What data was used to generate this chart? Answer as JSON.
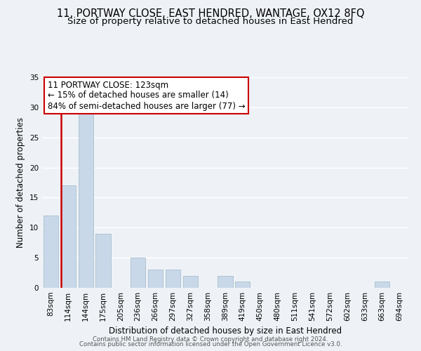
{
  "title": "11, PORTWAY CLOSE, EAST HENDRED, WANTAGE, OX12 8FQ",
  "subtitle": "Size of property relative to detached houses in East Hendred",
  "xlabel": "Distribution of detached houses by size in East Hendred",
  "ylabel": "Number of detached properties",
  "bar_labels": [
    "83sqm",
    "114sqm",
    "144sqm",
    "175sqm",
    "205sqm",
    "236sqm",
    "266sqm",
    "297sqm",
    "327sqm",
    "358sqm",
    "389sqm",
    "419sqm",
    "450sqm",
    "480sqm",
    "511sqm",
    "541sqm",
    "572sqm",
    "602sqm",
    "633sqm",
    "663sqm",
    "694sqm"
  ],
  "bar_values": [
    12,
    17,
    29,
    9,
    0,
    5,
    3,
    3,
    2,
    0,
    2,
    1,
    0,
    0,
    0,
    0,
    0,
    0,
    0,
    1,
    0
  ],
  "bar_color": "#c8d8e8",
  "bar_edge_color": "#a8bece",
  "vline_color": "#cc0000",
  "vline_x_index": 1,
  "ylim": [
    0,
    35
  ],
  "yticks": [
    0,
    5,
    10,
    15,
    20,
    25,
    30,
    35
  ],
  "annotation_title": "11 PORTWAY CLOSE: 123sqm",
  "annotation_line1": "← 15% of detached houses are smaller (14)",
  "annotation_line2": "84% of semi-detached houses are larger (77) →",
  "annotation_box_color": "#ffffff",
  "annotation_box_edge": "#cc0000",
  "footer1": "Contains HM Land Registry data © Crown copyright and database right 2024.",
  "footer2": "Contains public sector information licensed under the Open Government Licence v3.0.",
  "background_color": "#eef2f7",
  "grid_color": "#ffffff",
  "title_fontsize": 10.5,
  "subtitle_fontsize": 9.5,
  "annotation_fontsize": 8.5,
  "axis_label_fontsize": 8.5,
  "tick_fontsize": 7.5
}
